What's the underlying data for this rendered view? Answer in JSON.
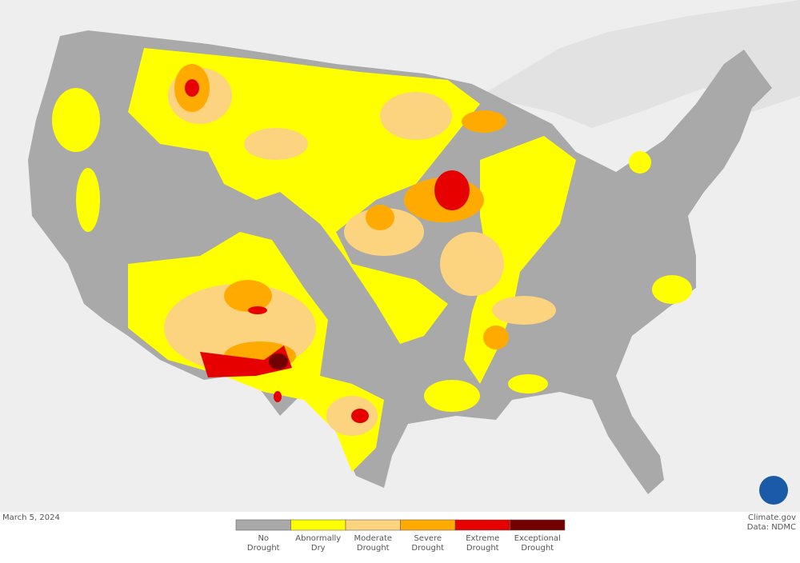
{
  "date": "March 5, 2024",
  "credit": [
    "Climate.gov",
    "Data: NDMC"
  ],
  "legend": [
    {
      "label": [
        "No",
        "Drought"
      ],
      "color": "#a9a9a9"
    },
    {
      "label": [
        "Abnormally",
        "Dry"
      ],
      "color": "#ffff00"
    },
    {
      "label": [
        "Moderate",
        "Drought"
      ],
      "color": "#fcd37f"
    },
    {
      "label": [
        "Severe",
        "Drought"
      ],
      "color": "#ffaa00"
    },
    {
      "label": [
        "Extreme",
        "Drought"
      ],
      "color": "#e60000"
    },
    {
      "label": [
        "Exceptional",
        "Drought"
      ],
      "color": "#730000"
    }
  ]
}
